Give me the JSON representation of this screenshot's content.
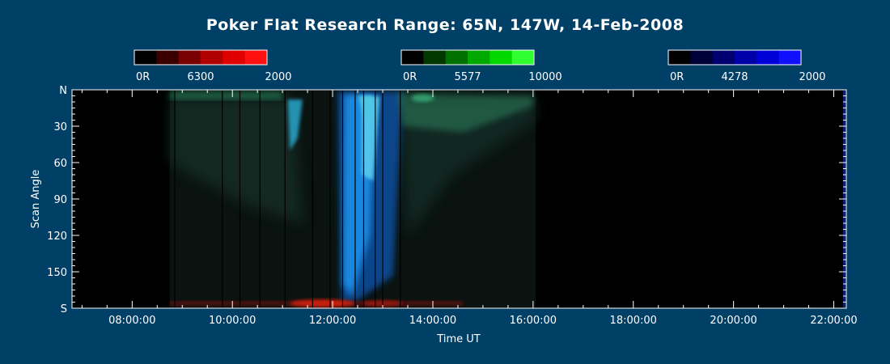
{
  "chart_data": {
    "type": "heatmap",
    "title": "Poker Flat Research Range: 65N, 147W, 14-Feb-2008",
    "xlabel": "Time UT",
    "ylabel": "Scan Angle",
    "x_ticks": [
      "08:00:00",
      "10:00:00",
      "12:00:00",
      "14:00:00",
      "16:00:00",
      "18:00:00",
      "20:00:00",
      "22:00:00"
    ],
    "x_range_hours": [
      6.8,
      22.25
    ],
    "y_ticks": [
      {
        "value": 0,
        "label": "N"
      },
      {
        "value": 30,
        "label": "30"
      },
      {
        "value": 60,
        "label": "60"
      },
      {
        "value": 90,
        "label": "90"
      },
      {
        "value": 120,
        "label": "120"
      },
      {
        "value": 150,
        "label": "150"
      },
      {
        "value": 180,
        "label": "S"
      }
    ],
    "y_range_deg": [
      0,
      180
    ],
    "colorbars": [
      {
        "channel": "6300",
        "labels": [
          "0R",
          "6300",
          "2000"
        ],
        "colors": [
          "#000000",
          "#3a0000",
          "#780000",
          "#b00000",
          "#e00000",
          "#ff1010"
        ]
      },
      {
        "channel": "5577",
        "labels": [
          "0R",
          "5577",
          "10000"
        ],
        "colors": [
          "#000000",
          "#003800",
          "#007000",
          "#00a800",
          "#00d800",
          "#30ff30"
        ]
      },
      {
        "channel": "4278",
        "labels": [
          "0R",
          "4278",
          "2000"
        ],
        "colors": [
          "#000000",
          "#000038",
          "#000070",
          "#0000a8",
          "#0000d8",
          "#1010ff"
        ]
      }
    ],
    "data_window_hours": [
      8.75,
      16.05
    ],
    "features": [
      {
        "channel": "4278",
        "time_start_hours": 12.1,
        "time_end_hours": 13.4,
        "scan_start_deg": 0,
        "scan_end_deg": 180
      },
      {
        "channel": "5577",
        "time_start_hours": 8.75,
        "time_end_hours": 16.05,
        "scan_start_deg": 0,
        "scan_end_deg": 30
      },
      {
        "channel": "6300",
        "time_start_hours": 8.75,
        "time_end_hours": 14.6,
        "scan_start_deg": 165,
        "scan_end_deg": 180
      }
    ]
  }
}
